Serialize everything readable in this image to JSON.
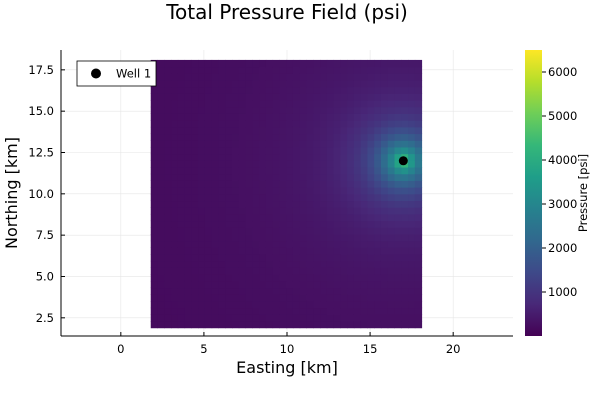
{
  "chart_data": {
    "type": "heatmap",
    "title": "Total Pressure Field (psi)",
    "xlabel": "Easting [km]",
    "ylabel": "Northing [km]",
    "colorbar_label": "Pressure [psi]",
    "colormap": "viridis",
    "xlim": [
      -3.6,
      23.6
    ],
    "ylim": [
      1.4,
      18.7
    ],
    "field_extent": {
      "x": [
        1.8,
        18.1
      ],
      "y": [
        1.9,
        18.1
      ]
    },
    "clim": [
      0,
      6500
    ],
    "x_ticks": [
      0,
      5,
      10,
      15,
      20
    ],
    "x_tick_labels": [
      "0",
      "5",
      "10",
      "15",
      "20"
    ],
    "y_ticks": [
      2.5,
      5.0,
      7.5,
      10.0,
      12.5,
      15.0,
      17.5
    ],
    "y_tick_labels": [
      "2.5",
      "5.0",
      "7.5",
      "10.0",
      "12.5",
      "15.0",
      "17.5"
    ],
    "colorbar_ticks": [
      1000,
      2000,
      3000,
      4000,
      5000,
      6000
    ],
    "colorbar_tick_labels": [
      "1000",
      "2000",
      "3000",
      "4000",
      "5000",
      "6000"
    ],
    "field_background_psi": 150,
    "peak_pressure_psi": 4200,
    "wells": [
      {
        "name": "Well 1",
        "x": 17.0,
        "y": 12.0
      }
    ],
    "legend_position": "top-left",
    "grid": true
  },
  "colors": {
    "viridis": [
      "#440154",
      "#482878",
      "#3e4989",
      "#31688e",
      "#26828e",
      "#1f9e89",
      "#35b779",
      "#6ece58",
      "#b5de2b",
      "#fde725"
    ],
    "marker": "#000000",
    "axis": "#000000",
    "grid": "#e6e6e6"
  }
}
